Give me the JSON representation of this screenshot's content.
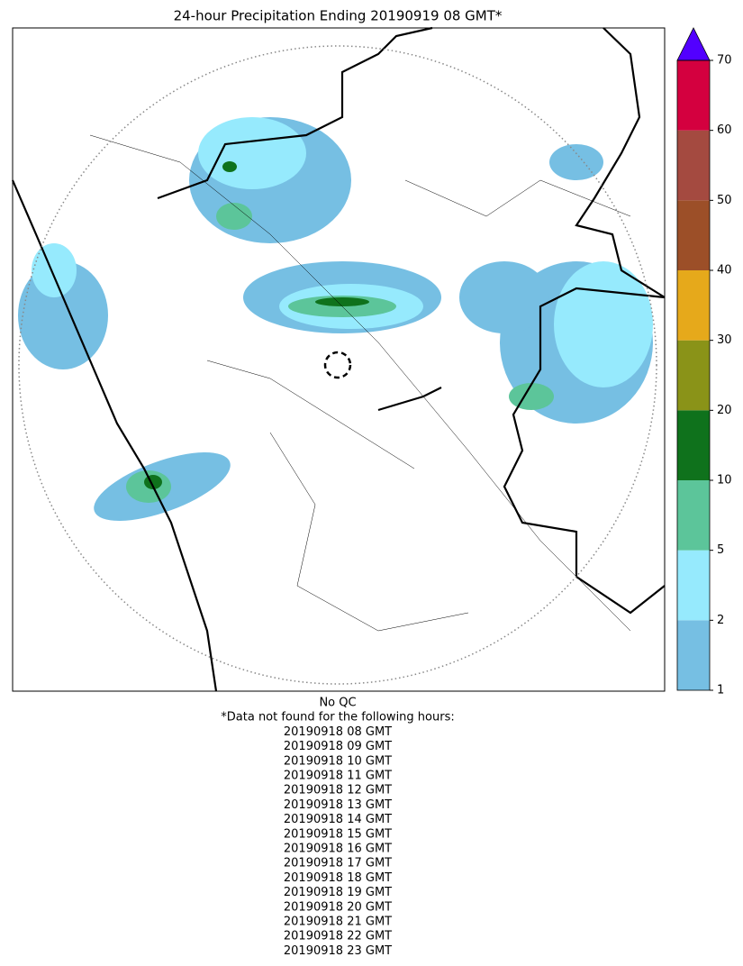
{
  "title": "24-hour Precipitation Ending 20190919 08 GMT*",
  "colorbar": {
    "levels": [
      1,
      2,
      5,
      10,
      20,
      30,
      40,
      50,
      60,
      70
    ],
    "colors": [
      "#76bfe3",
      "#96eafd",
      "#5cc59a",
      "#0f721c",
      "#8a9318",
      "#e6a91b",
      "#9c4f28",
      "#a44a40",
      "#d4003f"
    ],
    "extend_color": "#5200ff"
  },
  "footer": {
    "qc": "No QC",
    "note": "*Data not found for the following hours:",
    "hours": [
      "20190918 08 GMT",
      "20190918 09 GMT",
      "20190918 10 GMT",
      "20190918 11 GMT",
      "20190918 12 GMT",
      "20190918 13 GMT",
      "20190918 14 GMT",
      "20190918 15 GMT",
      "20190918 16 GMT",
      "20190918 17 GMT",
      "20190918 18 GMT",
      "20190918 19 GMT",
      "20190918 20 GMT",
      "20190918 21 GMT",
      "20190918 22 GMT",
      "20190918 23 GMT"
    ]
  }
}
